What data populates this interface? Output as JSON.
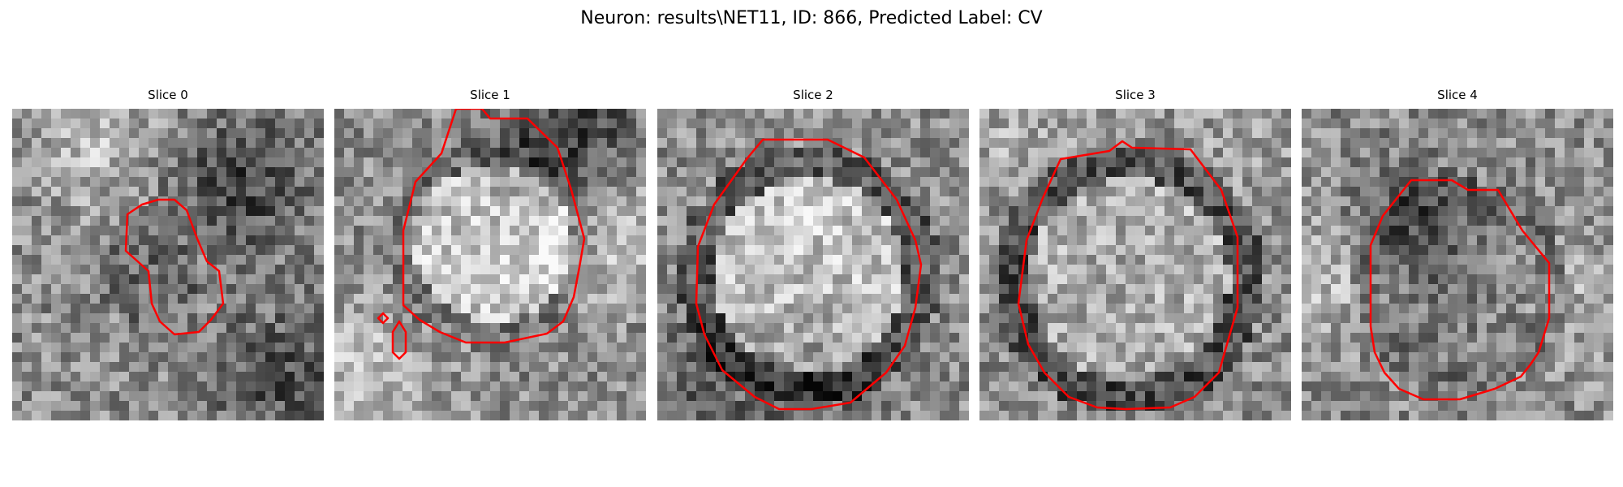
{
  "figure": {
    "title": "Neuron: results\\NET11, ID: 866, Predicted Label: CV"
  },
  "panels": [
    {
      "title": "Slice 0"
    },
    {
      "title": "Slice 1"
    },
    {
      "title": "Slice 2"
    },
    {
      "title": "Slice 3"
    },
    {
      "title": "Slice 4"
    }
  ],
  "colors": {
    "contour": "#ff0000",
    "colormap": "grayscale"
  }
}
